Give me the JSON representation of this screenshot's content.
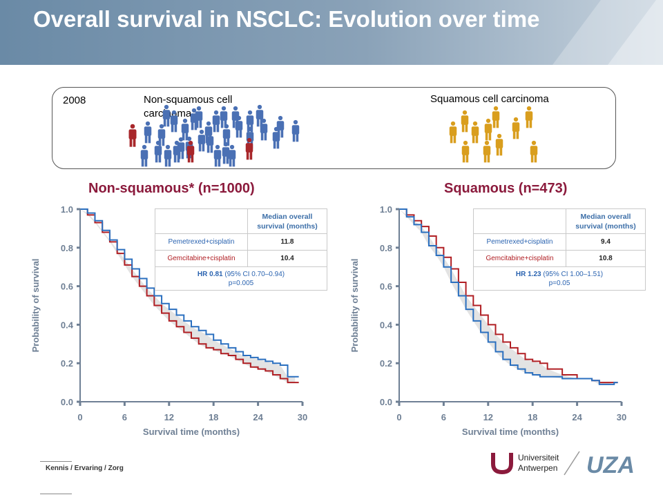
{
  "slide": {
    "title": "Overall survival in NSCLC: Evolution over time"
  },
  "info_box": {
    "year": "2008",
    "nonsquamous_label": "Non-squamous cell carcinoma",
    "squamous_label": "Squamous cell carcinoma"
  },
  "colors": {
    "pemetrexed": "#2a6fbf",
    "gemcitabine": "#b01e23",
    "band": "#d9d9d9",
    "axis": "#6e7f94",
    "title": "#8b1a3c",
    "person_blue": "#4a70b4",
    "person_red": "#a8272b",
    "person_gold": "#d99e1e"
  },
  "charts": [
    {
      "title": "Non-squamous* (n=1000)",
      "ylabel": "Probability of survival",
      "xlabel": "Survival time (months)",
      "table": {
        "header": "Median overall survival (months)",
        "rows": [
          {
            "label": "Pemetrexed+cisplatin",
            "value": "11.8"
          },
          {
            "label": "Gemcitabine+cisplatin",
            "value": "10.4"
          }
        ],
        "hr_bold": "HR 0.81",
        "hr_ci": " (95% CI 0.70–0.94)",
        "p": "p=0.005"
      }
    },
    {
      "title": "Squamous (n=473)",
      "ylabel": "Probability of survival",
      "xlabel": "Survival time (months)",
      "table": {
        "header": "Median overall survival (months)",
        "rows": [
          {
            "label": "Pemetrexed+cisplatin",
            "value": "9.4"
          },
          {
            "label": "Gemcitabine+cisplatin",
            "value": "10.8"
          }
        ],
        "hr_bold": "HR 1.23",
        "hr_ci": " (95% CI 1.00–1.51)",
        "p": "p=0.05"
      }
    }
  ],
  "chart_data": [
    {
      "type": "line",
      "title": "Non-squamous* (n=1000)",
      "xlabel": "Survival time (months)",
      "ylabel": "Probability of survival",
      "xlim": [
        0,
        30
      ],
      "ylim": [
        0,
        1.0
      ],
      "xticks": [
        0,
        6,
        12,
        18,
        24,
        30
      ],
      "yticks": [
        0.0,
        0.2,
        0.4,
        0.6,
        0.8,
        1.0
      ],
      "yticklabels": [
        "0.0",
        "0.2",
        "0.4",
        "0.6",
        "0.8",
        "1.0"
      ],
      "series": [
        {
          "name": "Pemetrexed+cisplatin",
          "x": [
            0,
            1,
            2,
            3,
            4,
            5,
            6,
            7,
            8,
            9,
            10,
            11,
            12,
            13,
            14,
            15,
            16,
            17,
            18,
            19,
            20,
            21,
            22,
            23,
            24,
            25,
            26,
            27,
            28,
            29
          ],
          "y": [
            1.0,
            0.98,
            0.94,
            0.89,
            0.84,
            0.79,
            0.74,
            0.69,
            0.64,
            0.59,
            0.55,
            0.51,
            0.48,
            0.45,
            0.42,
            0.39,
            0.37,
            0.35,
            0.32,
            0.3,
            0.28,
            0.26,
            0.24,
            0.23,
            0.22,
            0.21,
            0.2,
            0.19,
            0.13,
            0.13
          ]
        },
        {
          "name": "Gemcitabine+cisplatin",
          "x": [
            0,
            1,
            2,
            3,
            4,
            5,
            6,
            7,
            8,
            9,
            10,
            11,
            12,
            13,
            14,
            15,
            16,
            17,
            18,
            19,
            20,
            21,
            22,
            23,
            24,
            25,
            26,
            27,
            28,
            29
          ],
          "y": [
            1.0,
            0.97,
            0.93,
            0.88,
            0.83,
            0.77,
            0.71,
            0.65,
            0.6,
            0.55,
            0.5,
            0.46,
            0.42,
            0.39,
            0.36,
            0.33,
            0.3,
            0.28,
            0.27,
            0.25,
            0.24,
            0.22,
            0.2,
            0.18,
            0.17,
            0.16,
            0.14,
            0.12,
            0.1,
            0.1
          ]
        }
      ]
    },
    {
      "type": "line",
      "title": "Squamous (n=473)",
      "xlabel": "Survival time (months)",
      "ylabel": "Probability of survival",
      "xlim": [
        0,
        30
      ],
      "ylim": [
        0,
        1.0
      ],
      "xticks": [
        0,
        6,
        12,
        18,
        24,
        30
      ],
      "yticks": [
        0.0,
        0.2,
        0.4,
        0.6,
        0.8,
        1.0
      ],
      "yticklabels": [
        "0.0",
        "0.2",
        "0.4",
        "0.6",
        "0.8",
        "1.0"
      ],
      "series": [
        {
          "name": "Pemetrexed+cisplatin",
          "x": [
            0,
            1,
            2,
            3,
            4,
            5,
            6,
            7,
            8,
            9,
            10,
            11,
            12,
            13,
            14,
            15,
            16,
            17,
            18,
            19,
            20,
            22,
            24,
            26,
            27,
            28,
            29
          ],
          "y": [
            1.0,
            0.96,
            0.92,
            0.88,
            0.81,
            0.76,
            0.7,
            0.62,
            0.55,
            0.48,
            0.42,
            0.36,
            0.31,
            0.26,
            0.22,
            0.19,
            0.17,
            0.15,
            0.14,
            0.13,
            0.13,
            0.12,
            0.12,
            0.11,
            0.09,
            0.09,
            0.1
          ]
        },
        {
          "name": "Gemcitabine+cisplatin",
          "x": [
            0,
            1,
            2,
            3,
            4,
            5,
            6,
            7,
            8,
            9,
            10,
            11,
            12,
            13,
            14,
            15,
            16,
            17,
            18,
            19,
            20,
            22,
            24,
            26,
            27,
            28,
            29
          ],
          "y": [
            1.0,
            0.97,
            0.94,
            0.91,
            0.86,
            0.8,
            0.75,
            0.69,
            0.62,
            0.55,
            0.5,
            0.45,
            0.4,
            0.35,
            0.31,
            0.28,
            0.25,
            0.22,
            0.21,
            0.2,
            0.17,
            0.14,
            0.12,
            0.11,
            0.1,
            0.1,
            0.1
          ]
        }
      ]
    }
  ],
  "footer": {
    "brand": "Kennis / Ervaring / Zorg",
    "ua_line1": "Universiteit",
    "ua_line2": "Antwerpen",
    "uza": "UZA"
  }
}
